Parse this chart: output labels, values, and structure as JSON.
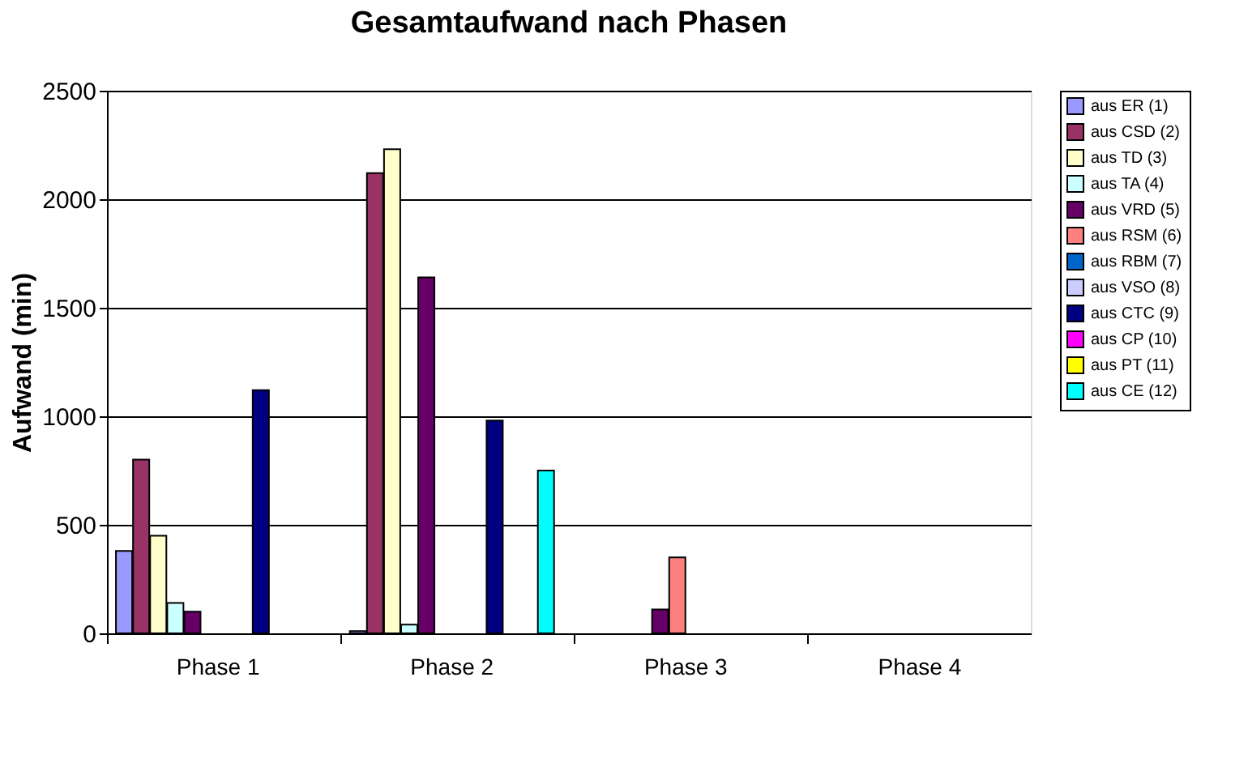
{
  "chart_data": {
    "type": "bar",
    "title": "Gesamtaufwand nach Phasen",
    "ylabel": "Aufwand (min)",
    "categories": [
      "Phase 1",
      "Phase 2",
      "Phase 3",
      "Phase 4"
    ],
    "series": [
      {
        "name": "aus ER (1)",
        "color": "#9999ff",
        "values": [
          380,
          10,
          null,
          null
        ]
      },
      {
        "name": "aus CSD (2)",
        "color": "#993366",
        "values": [
          800,
          2120,
          null,
          null
        ]
      },
      {
        "name": "aus TD (3)",
        "color": "#ffffcc",
        "values": [
          450,
          2230,
          null,
          null
        ]
      },
      {
        "name": "aus TA (4)",
        "color": "#ccffff",
        "values": [
          140,
          40,
          null,
          null
        ]
      },
      {
        "name": "aus VRD (5)",
        "color": "#660066",
        "values": [
          100,
          1640,
          110,
          null
        ]
      },
      {
        "name": "aus RSM (6)",
        "color": "#ff8080",
        "values": [
          null,
          null,
          350,
          null
        ]
      },
      {
        "name": "aus RBM (7)",
        "color": "#0066cc",
        "values": [
          null,
          null,
          null,
          null
        ]
      },
      {
        "name": "aus VSO (8)",
        "color": "#ccccff",
        "values": [
          null,
          null,
          null,
          null
        ]
      },
      {
        "name": "aus CTC (9)",
        "color": "#000080",
        "values": [
          1120,
          980,
          null,
          null
        ]
      },
      {
        "name": "aus CP (10)",
        "color": "#ff00ff",
        "values": [
          null,
          null,
          null,
          null
        ]
      },
      {
        "name": "aus PT (11)",
        "color": "#ffff00",
        "values": [
          null,
          null,
          null,
          null
        ]
      },
      {
        "name": "aus CE (12)",
        "color": "#00ffff",
        "values": [
          null,
          750,
          null,
          null
        ]
      }
    ],
    "ylim": [
      0,
      2500
    ],
    "yticks": [
      0,
      500,
      1000,
      1500,
      2000,
      2500
    ],
    "grid": "y",
    "legend": "right"
  }
}
